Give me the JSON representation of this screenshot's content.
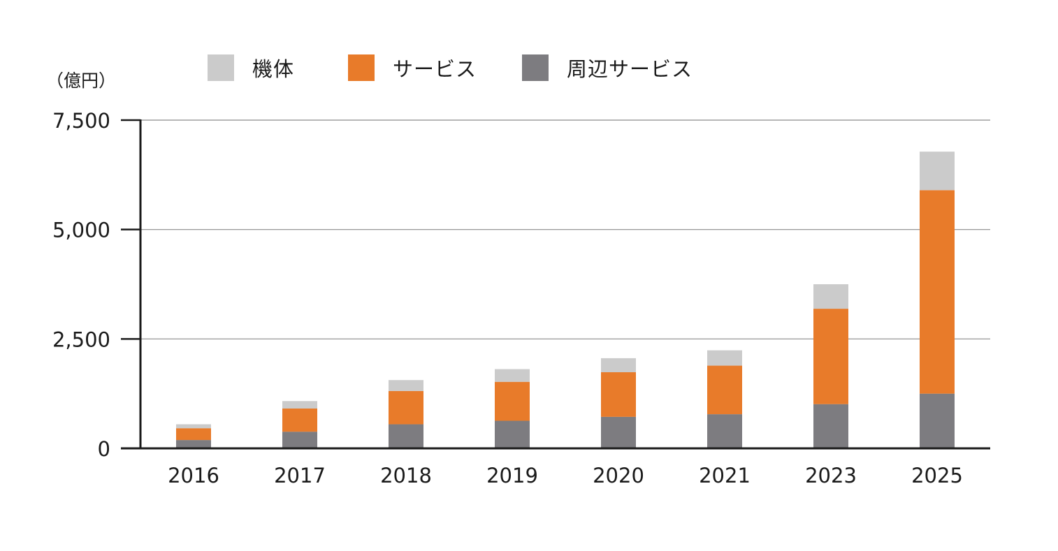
{
  "chart_data": {
    "type": "bar",
    "stacked": true,
    "unit_label": "（億円）",
    "categories": [
      "2016",
      "2017",
      "2018",
      "2019",
      "2020",
      "2021",
      "2023",
      "2025"
    ],
    "series": [
      {
        "name": "周辺サービス",
        "color": "#7d7c80",
        "values": [
          190,
          380,
          550,
          630,
          720,
          780,
          1010,
          1250
        ]
      },
      {
        "name": "サービス",
        "color": "#e87b2a",
        "values": [
          270,
          530,
          760,
          890,
          1020,
          1110,
          2180,
          4650
        ]
      },
      {
        "name": "機体",
        "color": "#cbcbcb",
        "values": [
          90,
          170,
          250,
          290,
          320,
          350,
          560,
          880
        ]
      }
    ],
    "legend_order": [
      "機体",
      "サービス",
      "周辺サービス"
    ],
    "legend_position": "top",
    "y_ticks": [
      0,
      2500,
      5000,
      7500
    ],
    "y_tick_labels": [
      "0",
      "2,500",
      "5,000",
      "7,500"
    ],
    "ylim": [
      0,
      7500
    ],
    "grid": true
  }
}
